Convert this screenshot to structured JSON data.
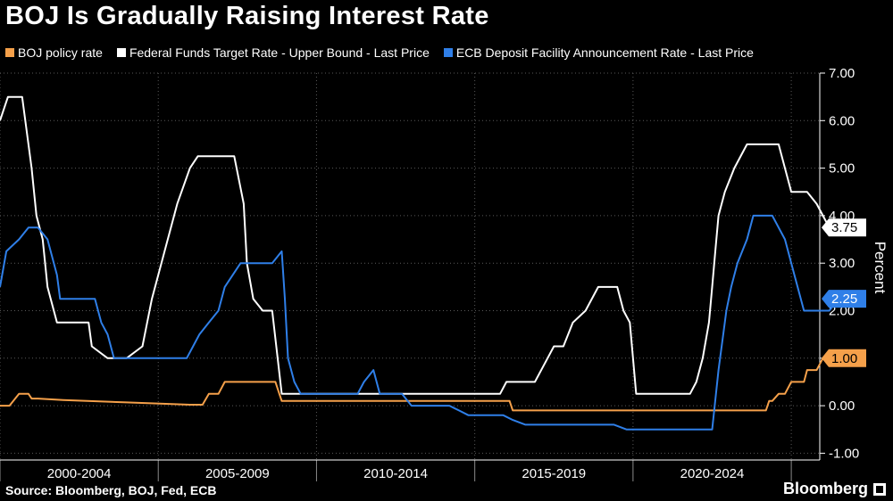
{
  "header": {
    "title": "BOJ Is Gradually Raising Interest Rate"
  },
  "legend": [
    {
      "label": "BOJ policy rate",
      "color": "#f5a04a"
    },
    {
      "label": "Federal Funds Target Rate - Upper Bound - Last Price",
      "color": "#ffffff"
    },
    {
      "label": "ECB Deposit Facility Announcement Rate - Last Price",
      "color": "#2f7fe8"
    }
  ],
  "footer": {
    "source": "Source: Bloomberg, BOJ, Fed, ECB",
    "brand": "Bloomberg"
  },
  "chart_data": {
    "type": "line",
    "ylabel": "Percent",
    "ylim": [
      -1,
      7
    ],
    "yticks": [
      "7.00",
      "6.00",
      "5.00",
      "4.00",
      "3.00",
      "2.00",
      "1.00",
      "0.00",
      "-1.00"
    ],
    "x_range": [
      2000.0,
      2025.9
    ],
    "x_period_labels": [
      "2000-2004",
      "2005-2009",
      "2010-2014",
      "2015-2019",
      "2020-2024"
    ],
    "grid": true,
    "series": [
      {
        "name": "BOJ policy rate",
        "color": "#f5a04a",
        "last_value": "1.00",
        "points": [
          [
            2000.0,
            0.0
          ],
          [
            2000.3,
            0.0
          ],
          [
            2000.6,
            0.25
          ],
          [
            2000.9,
            0.25
          ],
          [
            2001.0,
            0.15
          ],
          [
            2001.2,
            0.15
          ],
          [
            2002.0,
            0.12
          ],
          [
            2004.0,
            0.07
          ],
          [
            2006.0,
            0.02
          ],
          [
            2006.4,
            0.02
          ],
          [
            2006.6,
            0.25
          ],
          [
            2006.9,
            0.25
          ],
          [
            2007.1,
            0.5
          ],
          [
            2008.7,
            0.5
          ],
          [
            2008.8,
            0.3
          ],
          [
            2008.9,
            0.1
          ],
          [
            2015.5,
            0.1
          ],
          [
            2016.1,
            0.1
          ],
          [
            2016.2,
            -0.1
          ],
          [
            2023.4,
            -0.1
          ],
          [
            2024.2,
            -0.1
          ],
          [
            2024.3,
            0.1
          ],
          [
            2024.4,
            0.1
          ],
          [
            2024.6,
            0.25
          ],
          [
            2024.8,
            0.25
          ],
          [
            2025.0,
            0.5
          ],
          [
            2025.4,
            0.5
          ],
          [
            2025.5,
            0.75
          ],
          [
            2025.8,
            0.75
          ],
          [
            2026.0,
            1.0
          ]
        ]
      },
      {
        "name": "Federal Funds Target Rate - Upper Bound - Last Price",
        "color": "#ffffff",
        "last_value": "3.75",
        "points": [
          [
            2000.0,
            6.0
          ],
          [
            2000.25,
            6.5
          ],
          [
            2000.7,
            6.5
          ],
          [
            2001.0,
            5.0
          ],
          [
            2001.15,
            4.0
          ],
          [
            2001.35,
            3.5
          ],
          [
            2001.5,
            2.5
          ],
          [
            2001.8,
            1.75
          ],
          [
            2002.8,
            1.75
          ],
          [
            2002.9,
            1.25
          ],
          [
            2003.4,
            1.0
          ],
          [
            2004.0,
            1.0
          ],
          [
            2004.5,
            1.25
          ],
          [
            2004.8,
            2.25
          ],
          [
            2005.2,
            3.25
          ],
          [
            2005.6,
            4.25
          ],
          [
            2006.0,
            5.0
          ],
          [
            2006.25,
            5.25
          ],
          [
            2007.4,
            5.25
          ],
          [
            2007.7,
            4.25
          ],
          [
            2007.8,
            3.0
          ],
          [
            2008.0,
            2.25
          ],
          [
            2008.3,
            2.0
          ],
          [
            2008.6,
            2.0
          ],
          [
            2008.9,
            0.25
          ],
          [
            2015.8,
            0.25
          ],
          [
            2016.0,
            0.5
          ],
          [
            2016.9,
            0.5
          ],
          [
            2017.3,
            1.0
          ],
          [
            2017.5,
            1.25
          ],
          [
            2017.8,
            1.25
          ],
          [
            2018.1,
            1.75
          ],
          [
            2018.5,
            2.0
          ],
          [
            2018.9,
            2.5
          ],
          [
            2019.5,
            2.5
          ],
          [
            2019.7,
            2.0
          ],
          [
            2019.9,
            1.75
          ],
          [
            2020.1,
            0.25
          ],
          [
            2021.8,
            0.25
          ],
          [
            2022.0,
            0.5
          ],
          [
            2022.2,
            1.0
          ],
          [
            2022.4,
            1.75
          ],
          [
            2022.5,
            2.5
          ],
          [
            2022.6,
            3.25
          ],
          [
            2022.7,
            4.0
          ],
          [
            2022.9,
            4.5
          ],
          [
            2023.2,
            5.0
          ],
          [
            2023.6,
            5.5
          ],
          [
            2024.6,
            5.5
          ],
          [
            2024.8,
            5.0
          ],
          [
            2025.0,
            4.5
          ],
          [
            2025.5,
            4.5
          ],
          [
            2025.8,
            4.25
          ],
          [
            2026.0,
            4.0
          ],
          [
            2026.2,
            3.75
          ],
          [
            2026.6,
            3.75
          ]
        ]
      },
      {
        "name": "ECB Deposit Facility Announcement Rate - Last Price",
        "color": "#2f7fe8",
        "last_value": "2.25",
        "points": [
          [
            2000.0,
            2.5
          ],
          [
            2000.2,
            3.25
          ],
          [
            2000.6,
            3.5
          ],
          [
            2000.9,
            3.75
          ],
          [
            2001.2,
            3.75
          ],
          [
            2001.5,
            3.5
          ],
          [
            2001.8,
            2.75
          ],
          [
            2001.9,
            2.25
          ],
          [
            2003.0,
            2.25
          ],
          [
            2003.2,
            1.75
          ],
          [
            2003.4,
            1.5
          ],
          [
            2003.6,
            1.0
          ],
          [
            2005.9,
            1.0
          ],
          [
            2006.1,
            1.25
          ],
          [
            2006.3,
            1.5
          ],
          [
            2006.6,
            1.75
          ],
          [
            2006.9,
            2.0
          ],
          [
            2007.1,
            2.5
          ],
          [
            2007.6,
            3.0
          ],
          [
            2008.6,
            3.0
          ],
          [
            2008.9,
            3.25
          ],
          [
            2009.0,
            2.25
          ],
          [
            2009.1,
            1.0
          ],
          [
            2009.3,
            0.5
          ],
          [
            2009.5,
            0.25
          ],
          [
            2011.3,
            0.25
          ],
          [
            2011.5,
            0.5
          ],
          [
            2011.8,
            0.75
          ],
          [
            2012.0,
            0.25
          ],
          [
            2012.7,
            0.25
          ],
          [
            2013.0,
            0.0
          ],
          [
            2014.2,
            0.0
          ],
          [
            2014.5,
            -0.1
          ],
          [
            2014.8,
            -0.2
          ],
          [
            2015.9,
            -0.2
          ],
          [
            2016.2,
            -0.3
          ],
          [
            2016.6,
            -0.4
          ],
          [
            2019.4,
            -0.4
          ],
          [
            2019.8,
            -0.5
          ],
          [
            2022.5,
            -0.5
          ],
          [
            2022.7,
            0.75
          ],
          [
            2022.85,
            1.5
          ],
          [
            2022.95,
            2.0
          ],
          [
            2023.1,
            2.5
          ],
          [
            2023.3,
            3.0
          ],
          [
            2023.6,
            3.5
          ],
          [
            2023.8,
            4.0
          ],
          [
            2024.4,
            4.0
          ],
          [
            2024.8,
            3.5
          ],
          [
            2025.1,
            2.75
          ],
          [
            2025.4,
            2.0
          ],
          [
            2026.2,
            2.0
          ],
          [
            2026.5,
            2.25
          ]
        ]
      }
    ]
  }
}
